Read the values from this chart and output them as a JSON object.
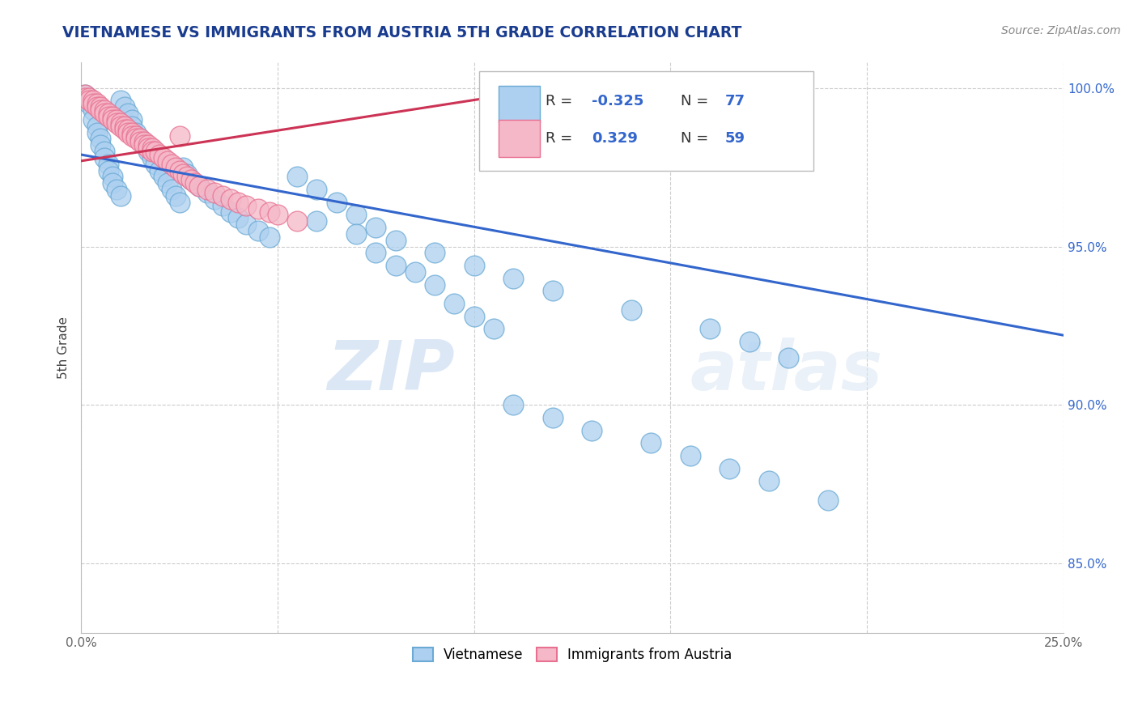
{
  "title": "VIETNAMESE VS IMMIGRANTS FROM AUSTRIA 5TH GRADE CORRELATION CHART",
  "source_text": "Source: ZipAtlas.com",
  "ylabel": "5th Grade",
  "xlim": [
    0.0,
    0.25
  ],
  "ylim": [
    0.828,
    1.008
  ],
  "xticks": [
    0.0,
    0.05,
    0.1,
    0.15,
    0.2,
    0.25
  ],
  "xticklabels": [
    "0.0%",
    "",
    "",
    "",
    "",
    "25.0%"
  ],
  "yticks": [
    0.85,
    0.9,
    0.95,
    1.0
  ],
  "yticklabels": [
    "85.0%",
    "90.0%",
    "95.0%",
    "100.0%"
  ],
  "watermark_zip": "ZIP",
  "watermark_atlas": "atlas",
  "blue_fill": "#add0f0",
  "pink_fill": "#f5b8c8",
  "blue_edge": "#6aaad4",
  "pink_edge": "#e87090",
  "blue_line_color": "#3366cc",
  "pink_line_color": "#cc3355",
  "grid_color": "#cccccc",
  "title_color": "#1a3c8f",
  "source_color": "#888888",
  "stat_label_color": "#333333",
  "stat_value_color": "#3366cc",
  "blue_scatter_x": [
    0.001,
    0.002,
    0.002,
    0.003,
    0.003,
    0.004,
    0.004,
    0.005,
    0.005,
    0.006,
    0.006,
    0.007,
    0.007,
    0.008,
    0.008,
    0.009,
    0.01,
    0.01,
    0.011,
    0.012,
    0.013,
    0.013,
    0.014,
    0.015,
    0.016,
    0.017,
    0.018,
    0.019,
    0.02,
    0.021,
    0.022,
    0.023,
    0.024,
    0.025,
    0.026,
    0.027,
    0.028,
    0.03,
    0.032,
    0.034,
    0.036,
    0.038,
    0.04,
    0.042,
    0.045,
    0.048,
    0.055,
    0.06,
    0.065,
    0.07,
    0.075,
    0.08,
    0.09,
    0.1,
    0.11,
    0.12,
    0.14,
    0.16,
    0.17,
    0.18,
    0.06,
    0.07,
    0.075,
    0.08,
    0.085,
    0.09,
    0.095,
    0.1,
    0.105,
    0.11,
    0.12,
    0.13,
    0.145,
    0.155,
    0.165,
    0.175,
    0.19
  ],
  "blue_scatter_y": [
    0.998,
    0.997,
    0.995,
    0.993,
    0.99,
    0.988,
    0.986,
    0.984,
    0.982,
    0.98,
    0.978,
    0.976,
    0.974,
    0.972,
    0.97,
    0.968,
    0.966,
    0.996,
    0.994,
    0.992,
    0.99,
    0.988,
    0.986,
    0.984,
    0.982,
    0.98,
    0.978,
    0.976,
    0.974,
    0.972,
    0.97,
    0.968,
    0.966,
    0.964,
    0.975,
    0.973,
    0.971,
    0.969,
    0.967,
    0.965,
    0.963,
    0.961,
    0.959,
    0.957,
    0.955,
    0.953,
    0.972,
    0.968,
    0.964,
    0.96,
    0.956,
    0.952,
    0.948,
    0.944,
    0.94,
    0.936,
    0.93,
    0.924,
    0.92,
    0.915,
    0.958,
    0.954,
    0.948,
    0.944,
    0.942,
    0.938,
    0.932,
    0.928,
    0.924,
    0.9,
    0.896,
    0.892,
    0.888,
    0.884,
    0.88,
    0.876,
    0.87
  ],
  "pink_scatter_x": [
    0.001,
    0.001,
    0.002,
    0.002,
    0.003,
    0.003,
    0.004,
    0.004,
    0.005,
    0.005,
    0.006,
    0.006,
    0.007,
    0.007,
    0.008,
    0.008,
    0.009,
    0.009,
    0.01,
    0.01,
    0.011,
    0.011,
    0.012,
    0.012,
    0.013,
    0.013,
    0.014,
    0.014,
    0.015,
    0.015,
    0.016,
    0.016,
    0.017,
    0.017,
    0.018,
    0.018,
    0.019,
    0.02,
    0.021,
    0.022,
    0.023,
    0.024,
    0.025,
    0.025,
    0.026,
    0.027,
    0.028,
    0.029,
    0.03,
    0.032,
    0.034,
    0.036,
    0.038,
    0.04,
    0.042,
    0.045,
    0.048,
    0.05,
    0.055
  ],
  "pink_scatter_y": [
    0.998,
    0.997,
    0.997,
    0.996,
    0.996,
    0.995,
    0.995,
    0.994,
    0.994,
    0.993,
    0.993,
    0.992,
    0.992,
    0.991,
    0.991,
    0.99,
    0.99,
    0.989,
    0.989,
    0.988,
    0.988,
    0.987,
    0.987,
    0.986,
    0.986,
    0.985,
    0.985,
    0.984,
    0.984,
    0.983,
    0.983,
    0.982,
    0.982,
    0.981,
    0.981,
    0.98,
    0.98,
    0.979,
    0.978,
    0.977,
    0.976,
    0.975,
    0.974,
    0.985,
    0.973,
    0.972,
    0.971,
    0.97,
    0.969,
    0.968,
    0.967,
    0.966,
    0.965,
    0.964,
    0.963,
    0.962,
    0.961,
    0.96,
    0.958
  ],
  "blue_line_x0": 0.0,
  "blue_line_x1": 0.25,
  "blue_line_y0": 0.979,
  "blue_line_y1": 0.922,
  "pink_line_x0": 0.0,
  "pink_line_x1": 0.13,
  "pink_line_y0": 0.977,
  "pink_line_y1": 1.002
}
